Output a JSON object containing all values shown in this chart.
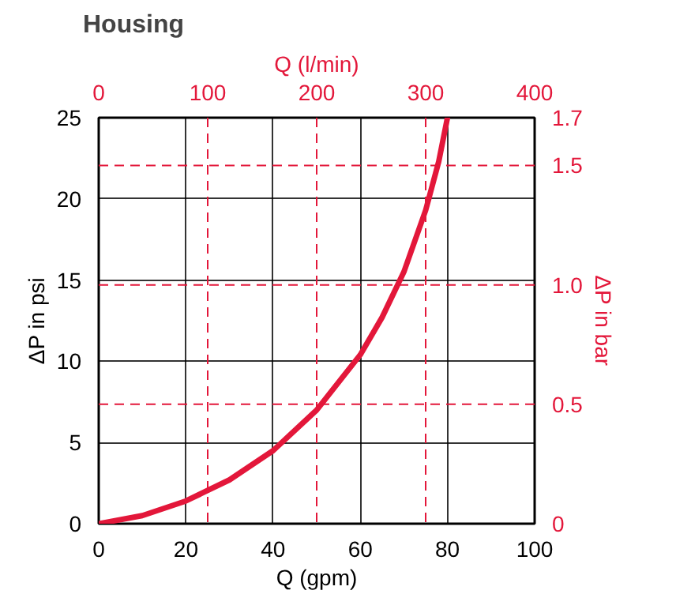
{
  "chart_data": {
    "type": "line",
    "title": "Housing",
    "xlabel": "Q (gpm)",
    "ylabel": "ΔP in psi",
    "x2label": "Q (l/min)",
    "y2label": "ΔP in bar",
    "xlim": [
      0,
      100
    ],
    "xticks": [
      0,
      20,
      40,
      60,
      80,
      100
    ],
    "ylim": [
      0,
      25
    ],
    "yticks": [
      0,
      5,
      10,
      15,
      20,
      25
    ],
    "x2lim": [
      0,
      400
    ],
    "x2ticks": [
      0,
      100,
      200,
      300,
      400
    ],
    "y2lim": [
      0,
      1.7
    ],
    "y2ticks": [
      0,
      0.5,
      {
        "value": 1.0,
        "label": "1.0"
      },
      1.5,
      1.7
    ],
    "grid": true,
    "line_style": "solid",
    "series": [
      {
        "color": "#e3173a",
        "x": [
          0,
          10,
          20,
          30,
          40,
          50,
          60,
          65,
          70,
          75,
          78,
          80
        ],
        "values": [
          0,
          0.5,
          1.4,
          2.7,
          4.5,
          7.0,
          10.4,
          12.7,
          15.5,
          19.3,
          22.3,
          25
        ]
      }
    ]
  }
}
